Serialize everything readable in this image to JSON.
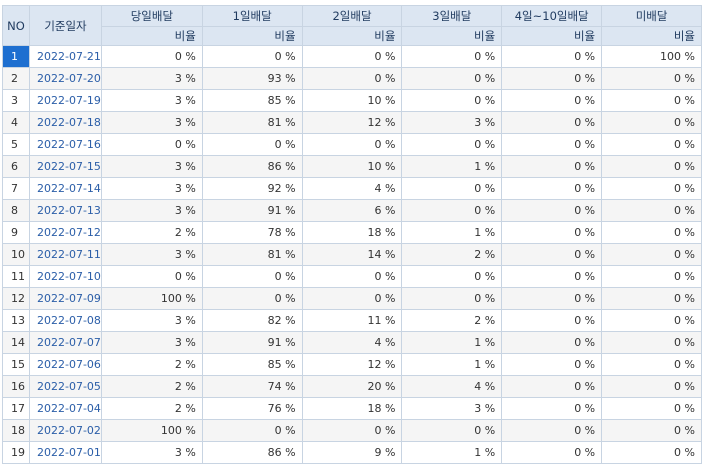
{
  "headers": {
    "no": "NO",
    "date": "기준일자",
    "groups": [
      "당일배달",
      "1일배달",
      "2일배달",
      "3일배달",
      "4일~10일배달",
      "미배달"
    ],
    "sub": "비율"
  },
  "selected_row": 0,
  "rows": [
    {
      "no": "1",
      "date": "2022-07-21",
      "values": [
        "0 %",
        "0 %",
        "0 %",
        "0 %",
        "0 %",
        "100 %"
      ]
    },
    {
      "no": "2",
      "date": "2022-07-20",
      "values": [
        "3 %",
        "93 %",
        "0 %",
        "0 %",
        "0 %",
        "0 %"
      ]
    },
    {
      "no": "3",
      "date": "2022-07-19",
      "values": [
        "3 %",
        "85 %",
        "10 %",
        "0 %",
        "0 %",
        "0 %"
      ]
    },
    {
      "no": "4",
      "date": "2022-07-18",
      "values": [
        "3 %",
        "81 %",
        "12 %",
        "3 %",
        "0 %",
        "0 %"
      ]
    },
    {
      "no": "5",
      "date": "2022-07-16",
      "values": [
        "0 %",
        "0 %",
        "0 %",
        "0 %",
        "0 %",
        "0 %"
      ]
    },
    {
      "no": "6",
      "date": "2022-07-15",
      "values": [
        "3 %",
        "86 %",
        "10 %",
        "1 %",
        "0 %",
        "0 %"
      ]
    },
    {
      "no": "7",
      "date": "2022-07-14",
      "values": [
        "3 %",
        "92 %",
        "4 %",
        "0 %",
        "0 %",
        "0 %"
      ]
    },
    {
      "no": "8",
      "date": "2022-07-13",
      "values": [
        "3 %",
        "91 %",
        "6 %",
        "0 %",
        "0 %",
        "0 %"
      ]
    },
    {
      "no": "9",
      "date": "2022-07-12",
      "values": [
        "2 %",
        "78 %",
        "18 %",
        "1 %",
        "0 %",
        "0 %"
      ]
    },
    {
      "no": "10",
      "date": "2022-07-11",
      "values": [
        "3 %",
        "81 %",
        "14 %",
        "2 %",
        "0 %",
        "0 %"
      ]
    },
    {
      "no": "11",
      "date": "2022-07-10",
      "values": [
        "0 %",
        "0 %",
        "0 %",
        "0 %",
        "0 %",
        "0 %"
      ]
    },
    {
      "no": "12",
      "date": "2022-07-09",
      "values": [
        "100 %",
        "0 %",
        "0 %",
        "0 %",
        "0 %",
        "0 %"
      ]
    },
    {
      "no": "13",
      "date": "2022-07-08",
      "values": [
        "3 %",
        "82 %",
        "11 %",
        "2 %",
        "0 %",
        "0 %"
      ]
    },
    {
      "no": "14",
      "date": "2022-07-07",
      "values": [
        "3 %",
        "91 %",
        "4 %",
        "1 %",
        "0 %",
        "0 %"
      ]
    },
    {
      "no": "15",
      "date": "2022-07-06",
      "values": [
        "2 %",
        "85 %",
        "12 %",
        "1 %",
        "0 %",
        "0 %"
      ]
    },
    {
      "no": "16",
      "date": "2022-07-05",
      "values": [
        "2 %",
        "74 %",
        "20 %",
        "4 %",
        "0 %",
        "0 %"
      ]
    },
    {
      "no": "17",
      "date": "2022-07-04",
      "values": [
        "2 %",
        "76 %",
        "18 %",
        "3 %",
        "0 %",
        "0 %"
      ]
    },
    {
      "no": "18",
      "date": "2022-07-02",
      "values": [
        "100 %",
        "0 %",
        "0 %",
        "0 %",
        "0 %",
        "0 %"
      ]
    },
    {
      "no": "19",
      "date": "2022-07-01",
      "values": [
        "3 %",
        "86 %",
        "9 %",
        "1 %",
        "0 %",
        "0 %"
      ]
    }
  ]
}
